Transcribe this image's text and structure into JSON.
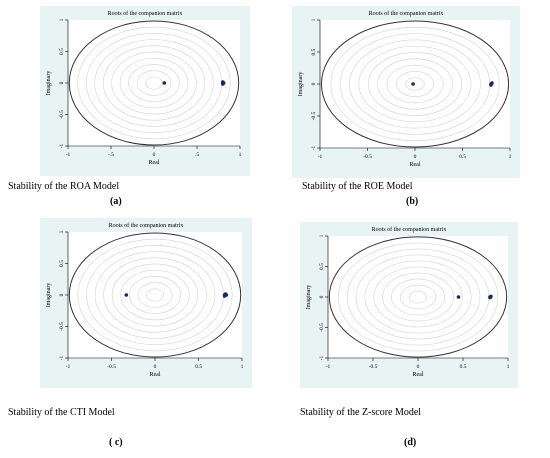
{
  "chart_data": [
    {
      "type": "scatter",
      "title": "Roots of the companion matrix",
      "xlabel": "Real",
      "ylabel": "Imaginary",
      "xlim": [
        -1,
        1
      ],
      "ylim": [
        -1,
        1
      ],
      "xticks": [
        -1,
        -0.5,
        0,
        0.5,
        1
      ],
      "xtick_labels": [
        "-1",
        "-.5",
        "0",
        ".5",
        "1"
      ],
      "yticks": [
        -1,
        -0.5,
        0,
        0.5,
        1
      ],
      "ytick_labels": [
        "-1",
        "-0.5",
        "0",
        "0.5",
        "1"
      ],
      "unit_circle": true,
      "grid_circles": true,
      "points": [
        {
          "x": 0.12,
          "y": 0.0
        },
        {
          "x": 0.8,
          "y": 0.0
        },
        {
          "x": 0.81,
          "y": 0.0
        },
        {
          "x": 0.8,
          "y": 0.015
        },
        {
          "x": 0.8,
          "y": -0.015
        }
      ],
      "caption": "Stability of the ROA Model",
      "label": "(a)"
    },
    {
      "type": "scatter",
      "title": "Roots of the companion matrix",
      "xlabel": "Real",
      "ylabel": "Imaginary",
      "xlim": [
        -1,
        1
      ],
      "ylim": [
        -1,
        1
      ],
      "xticks": [
        -1,
        -0.5,
        0,
        0.5,
        1
      ],
      "xtick_labels": [
        "-1",
        "-0.5",
        "0",
        "0.5",
        "1"
      ],
      "yticks": [
        -1,
        -0.5,
        0,
        0.5,
        1
      ],
      "ytick_labels": [
        "-1",
        "-0.5",
        "0",
        "0.5",
        "1"
      ],
      "unit_circle": true,
      "grid_circles": true,
      "points": [
        {
          "x": -0.02,
          "y": 0.0
        },
        {
          "x": 0.8,
          "y": 0.0
        },
        {
          "x": 0.81,
          "y": 0.015
        },
        {
          "x": 0.8,
          "y": -0.015
        }
      ],
      "caption": "Stability of the ROE Model",
      "label": "(b)"
    },
    {
      "type": "scatter",
      "title": "Roots of the companion matrix",
      "xlabel": "Real",
      "ylabel": "Imaginary",
      "xlim": [
        -1,
        1
      ],
      "ylim": [
        -1,
        1
      ],
      "xticks": [
        -1,
        -0.5,
        0,
        0.5,
        1
      ],
      "xtick_labels": [
        "-1",
        "-0.5",
        "0",
        "0.5",
        "1"
      ],
      "yticks": [
        -1,
        -0.5,
        0,
        0.5,
        1
      ],
      "ytick_labels": [
        "-1",
        "-0.5",
        "0",
        "0.5",
        "1"
      ],
      "unit_circle": true,
      "grid_circles": true,
      "points": [
        {
          "x": -0.33,
          "y": 0.0
        },
        {
          "x": 0.8,
          "y": 0.0
        },
        {
          "x": 0.81,
          "y": 0.015
        },
        {
          "x": 0.8,
          "y": -0.015
        },
        {
          "x": 0.82,
          "y": 0.0
        }
      ],
      "caption": "Stability of the CTI Model",
      "label": "( c)"
    },
    {
      "type": "scatter",
      "title": "Roots of the companion matrix",
      "xlabel": "Real",
      "ylabel": "Imaginary",
      "xlim": [
        -1,
        1
      ],
      "ylim": [
        -1,
        1
      ],
      "xticks": [
        -1,
        -0.5,
        0,
        0.5,
        1
      ],
      "xtick_labels": [
        "-1",
        "-0.5",
        "0",
        "0.5",
        "1"
      ],
      "yticks": [
        -1,
        -0.5,
        0,
        0.5,
        1
      ],
      "ytick_labels": [
        "-1",
        "-0.5",
        "0",
        "0.5",
        "1"
      ],
      "unit_circle": true,
      "grid_circles": true,
      "points": [
        {
          "x": 0.45,
          "y": 0.0
        },
        {
          "x": 0.8,
          "y": 0.0
        },
        {
          "x": 0.81,
          "y": 0.01
        },
        {
          "x": 0.8,
          "y": -0.01
        }
      ],
      "caption": "Stability of the Z-score Model",
      "label": "(d)"
    }
  ],
  "colors": {
    "panel_background": "#e8f3f3",
    "plot_background": "#ffffff",
    "unit_circle": "#333333",
    "grid_circle": "#d8d8d8",
    "point": "#1a2a5a"
  }
}
